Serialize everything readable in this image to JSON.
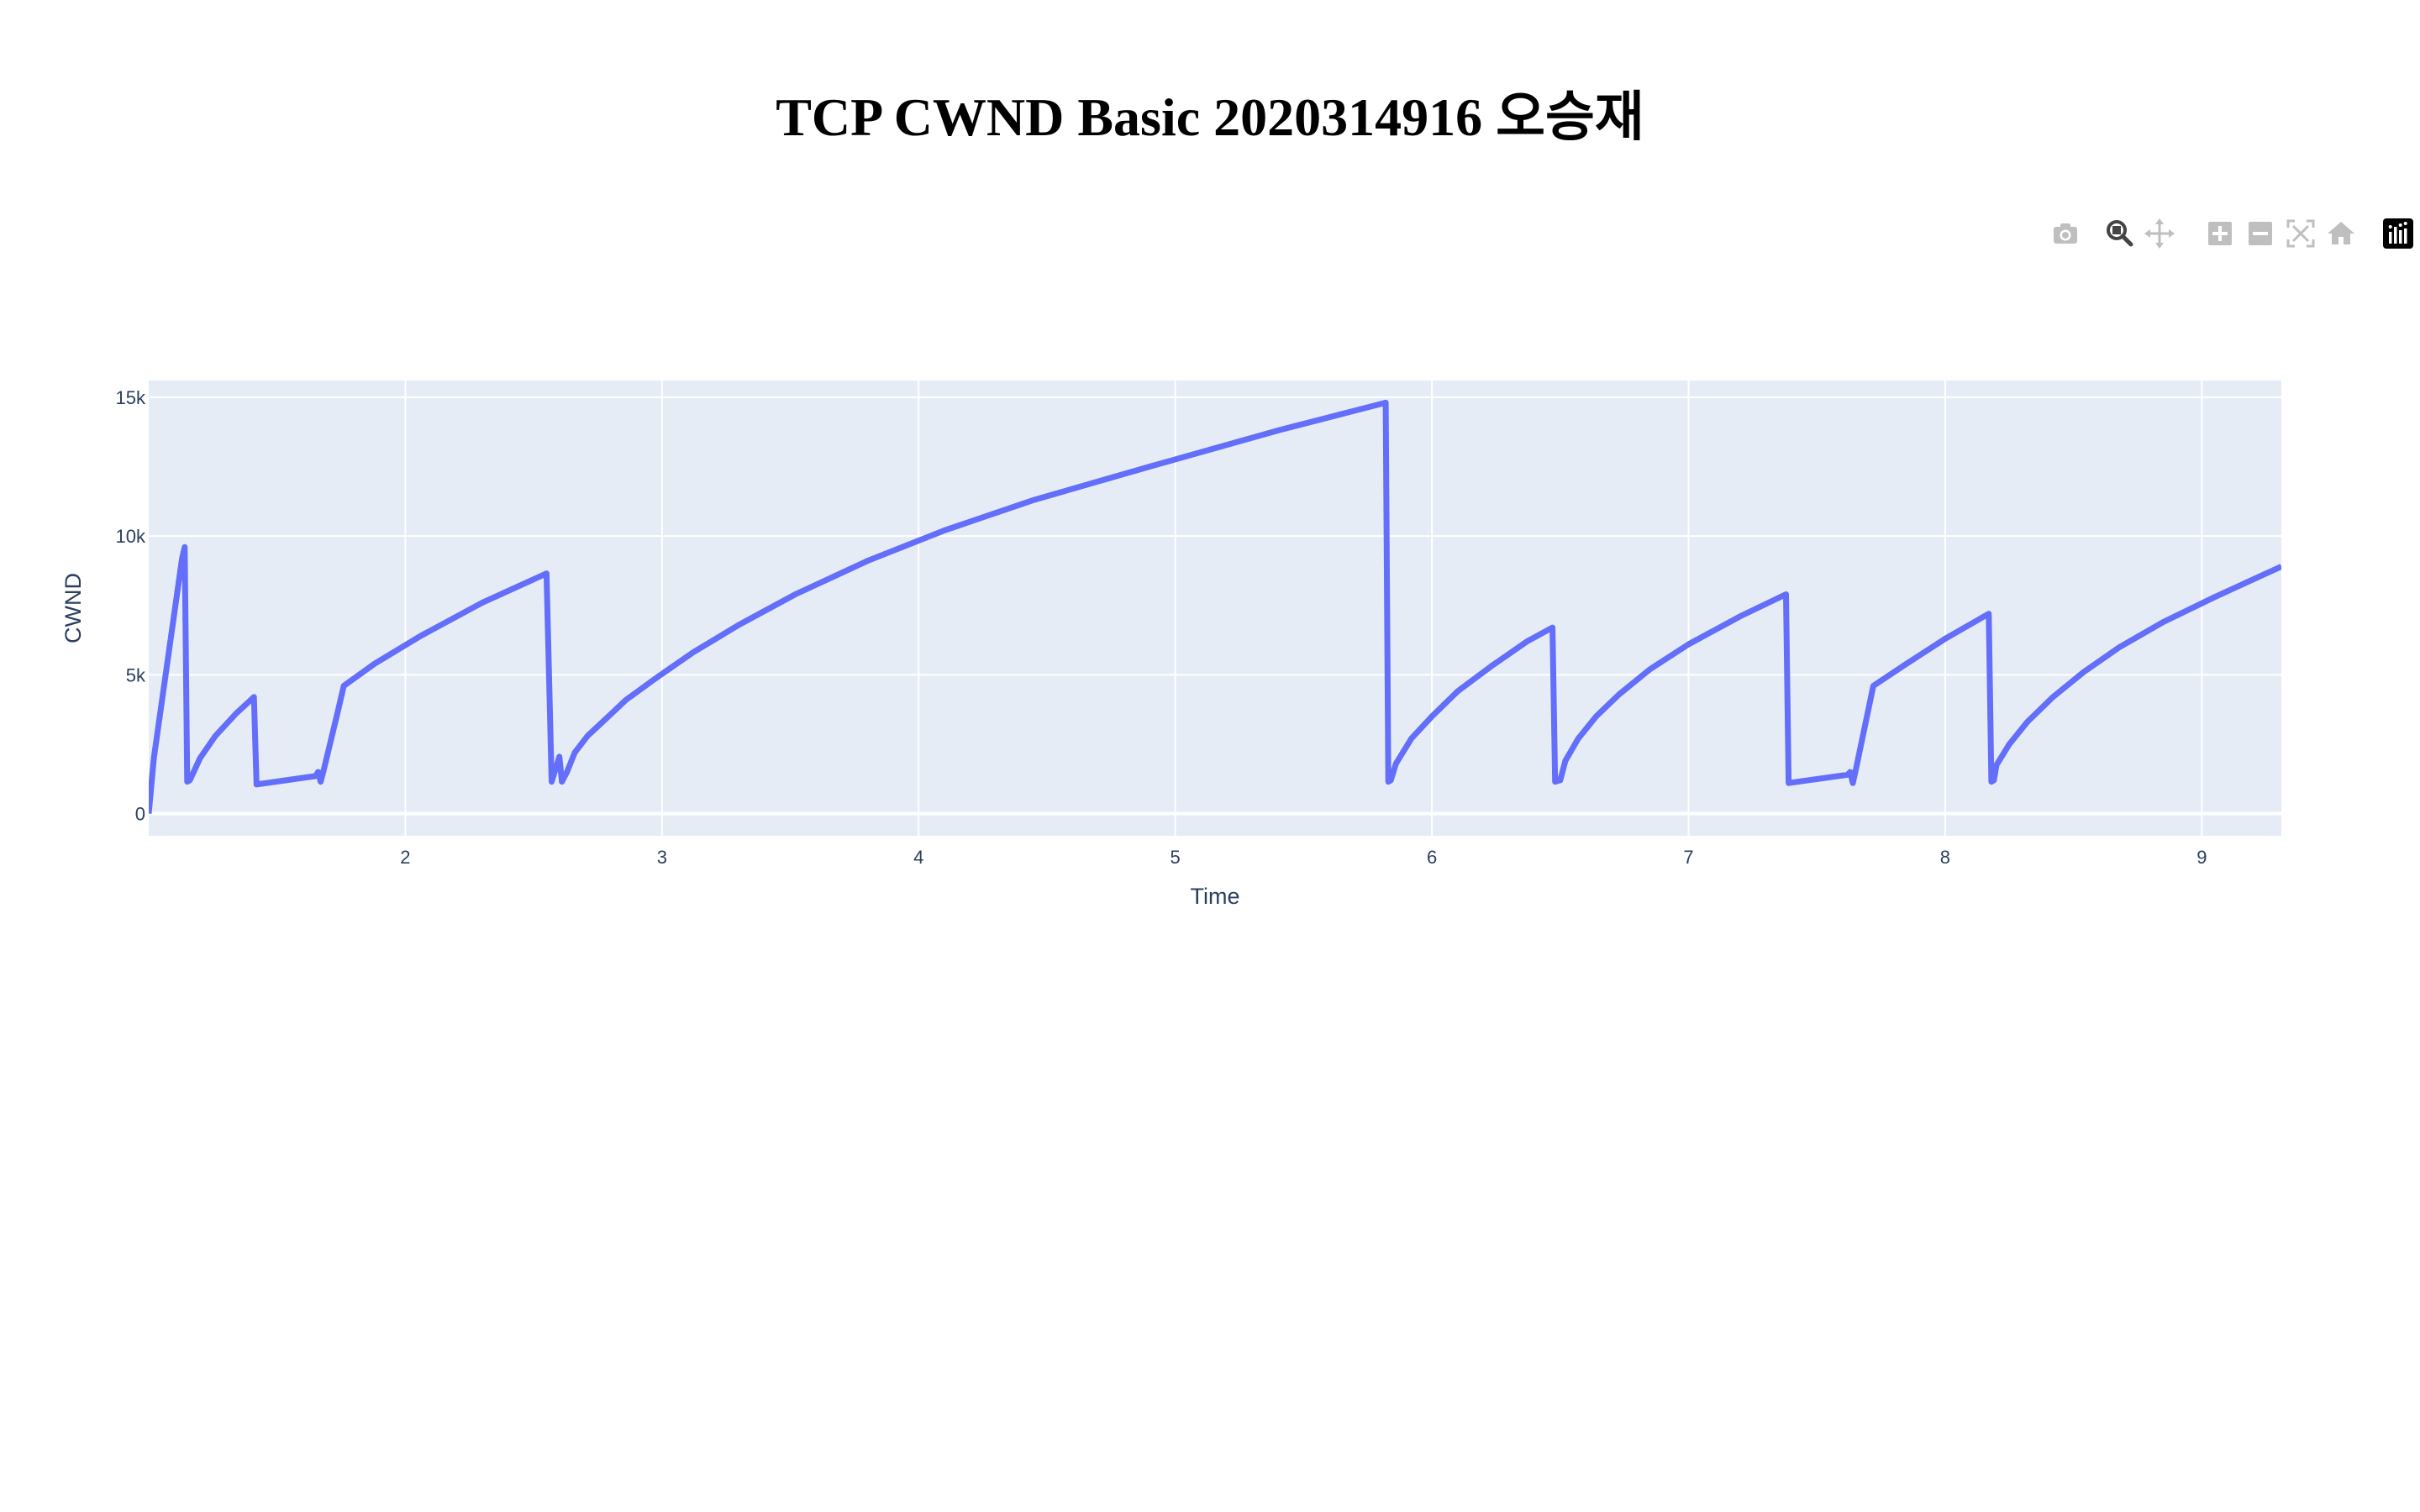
{
  "chart_data": {
    "type": "line",
    "title": "TCP CWND Basic 2020314916 오승재",
    "xlabel": "Time",
    "ylabel": "CWND",
    "xlim": [
      1.0,
      9.31
    ],
    "ylim": [
      -800,
      15600
    ],
    "xticks": [
      2,
      3,
      4,
      5,
      6,
      7,
      8,
      9
    ],
    "xtick_labels": [
      "2",
      "3",
      "4",
      "5",
      "6",
      "7",
      "8",
      "9"
    ],
    "yticks": [
      0,
      5000,
      10000,
      15000
    ],
    "ytick_labels": [
      "0",
      "5k",
      "10k",
      "15k"
    ],
    "grid": true,
    "legend": "none",
    "series": [
      {
        "color": "#636efa",
        "x": [
          1.0,
          1.02,
          1.13,
          1.14,
          1.15,
          1.16,
          1.2,
          1.26,
          1.34,
          1.41,
          1.42,
          1.65,
          1.66,
          1.67,
          1.68,
          1.74,
          1.76,
          1.88,
          2.06,
          2.3,
          2.55,
          2.57,
          2.6,
          2.61,
          2.63,
          2.66,
          2.71,
          2.78,
          2.86,
          2.98,
          3.12,
          3.3,
          3.52,
          3.8,
          4.1,
          4.45,
          4.9,
          5.4,
          5.82,
          5.83,
          5.84,
          5.86,
          5.92,
          6.0,
          6.1,
          6.23,
          6.37,
          6.47,
          6.48,
          6.5,
          6.52,
          6.57,
          6.64,
          6.73,
          6.85,
          7.0,
          7.2,
          7.38,
          7.39,
          7.62,
          7.63,
          7.64,
          7.65,
          7.72,
          7.85,
          8.0,
          8.17,
          8.18,
          8.19,
          8.2,
          8.25,
          8.32,
          8.42,
          8.54,
          8.68,
          8.85,
          9.05,
          9.31
        ],
        "y": [
          0,
          2000,
          9200,
          9600,
          1150,
          1200,
          2000,
          2800,
          3600,
          4200,
          1050,
          1350,
          1500,
          1150,
          1500,
          3800,
          4600,
          5400,
          6400,
          7600,
          8650,
          1150,
          2050,
          1150,
          1500,
          2200,
          2800,
          3400,
          4100,
          4900,
          5800,
          6800,
          7900,
          9100,
          10200,
          11300,
          12500,
          13800,
          14800,
          1150,
          1200,
          1800,
          2700,
          3500,
          4400,
          5300,
          6200,
          6700,
          1150,
          1200,
          1900,
          2700,
          3500,
          4300,
          5200,
          6100,
          7100,
          7900,
          1100,
          1400,
          1500,
          1100,
          1500,
          4600,
          5400,
          6300,
          7200,
          1150,
          1200,
          1750,
          2500,
          3300,
          4200,
          5100,
          6000,
          6900,
          7800,
          8900
        ]
      }
    ]
  },
  "modebar": {
    "buttons": [
      {
        "name": "download-plot-button",
        "icon": "camera-icon",
        "color": "#bfbfbf"
      },
      {
        "name": "zoom-button",
        "icon": "zoom-magnifier-icon",
        "color": "#444444"
      },
      {
        "name": "pan-button",
        "icon": "pan-arrows-icon",
        "color": "#bfbfbf"
      },
      {
        "name": "zoom-in-button",
        "icon": "zoom-in-icon",
        "color": "#bfbfbf"
      },
      {
        "name": "zoom-out-button",
        "icon": "zoom-out-icon",
        "color": "#bfbfbf"
      },
      {
        "name": "autoscale-button",
        "icon": "autoscale-icon",
        "color": "#bfbfbf"
      },
      {
        "name": "reset-axes-button",
        "icon": "home-icon",
        "color": "#bfbfbf"
      },
      {
        "name": "plotly-logo-button",
        "icon": "plotly-logo-icon",
        "color": "#000000"
      }
    ]
  }
}
